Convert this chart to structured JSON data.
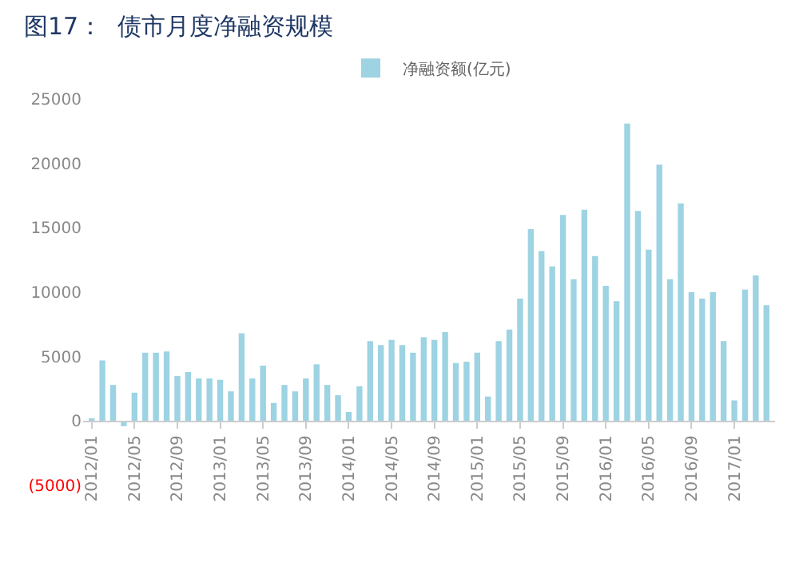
{
  "chart_data": {
    "type": "bar",
    "title": "图17：  债市月度净融资规模",
    "categories": [
      "2012/01",
      null,
      null,
      null,
      "2012/05",
      null,
      null,
      null,
      "2012/09",
      null,
      null,
      null,
      "2013/01",
      null,
      null,
      null,
      "2013/05",
      null,
      null,
      null,
      "2013/09",
      null,
      null,
      null,
      "2014/01",
      null,
      null,
      null,
      "2014/05",
      null,
      null,
      null,
      "2014/09",
      null,
      null,
      null,
      "2015/01",
      null,
      null,
      null,
      "2015/05",
      null,
      null,
      null,
      "2015/09",
      null,
      null,
      null,
      "2016/01",
      null,
      null,
      null,
      "2016/05",
      null,
      null,
      null,
      "2016/09",
      null,
      null,
      null,
      "2017/01",
      null,
      null,
      null
    ],
    "series": [
      {
        "name": "净融资额(亿元)",
        "color": "#9dd3e2",
        "values": [
          100,
          4700,
          2800,
          -400,
          2200,
          5300,
          5300,
          5400,
          3500,
          3800,
          3300,
          3300,
          3200,
          2300,
          6800,
          3300,
          4300,
          1400,
          2800,
          2300,
          3300,
          4400,
          2800,
          2000,
          700,
          2700,
          6200,
          5900,
          6300,
          5900,
          5300,
          6500,
          6300,
          6900,
          4500,
          4600,
          5300,
          1900,
          6200,
          7100,
          9500,
          14900,
          13200,
          12000,
          16000,
          11000,
          16400,
          12800,
          10500,
          9300,
          23100,
          16300,
          13300,
          19900,
          11000,
          16900,
          10000,
          9500,
          10000,
          6200,
          1600,
          10200,
          11300,
          9000
        ]
      }
    ],
    "ylim": [
      -5000,
      25000
    ],
    "yticks": [
      {
        "value": -5000,
        "label": "(5000)"
      },
      0,
      5000,
      10000,
      15000,
      20000,
      25000
    ],
    "legend": "top"
  }
}
